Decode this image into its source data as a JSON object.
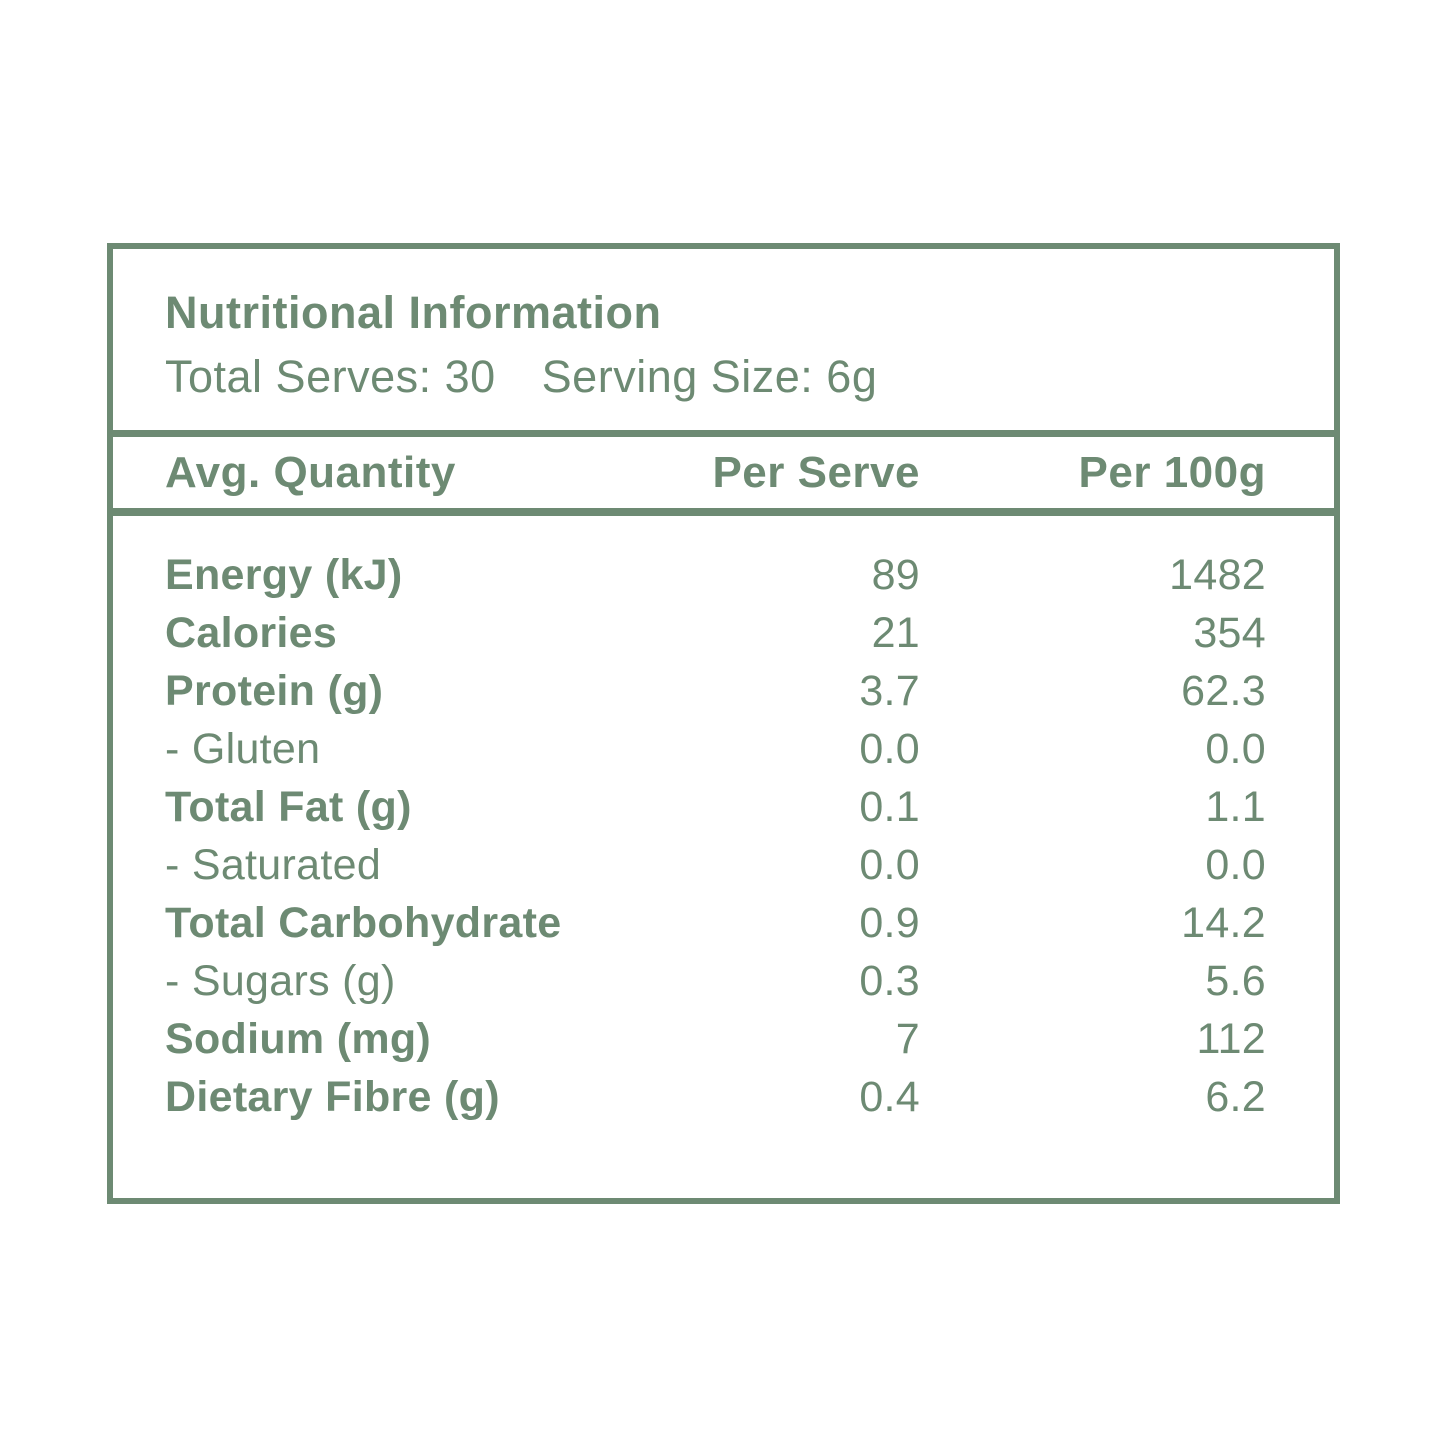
{
  "colors": {
    "green": "#6d8a73",
    "background": "#ffffff"
  },
  "label": {
    "title": "Nutritional Information",
    "serves_text": "Total Serves: 30",
    "serving_text": "Serving Size: 6g",
    "columns": {
      "quantity": "Avg. Quantity",
      "per_serve": "Per Serve",
      "per_100g": "Per 100g"
    },
    "rows": [
      {
        "name": "Energy (kJ)",
        "per_serve": "89",
        "per_100g": "1482",
        "emphasis": true
      },
      {
        "name": "Calories",
        "per_serve": "21",
        "per_100g": "354",
        "emphasis": true
      },
      {
        "name": "Protein (g)",
        "per_serve": "3.7",
        "per_100g": "62.3",
        "emphasis": true
      },
      {
        "name": "- Gluten",
        "per_serve": "0.0",
        "per_100g": "0.0",
        "emphasis": false
      },
      {
        "name": "Total Fat (g)",
        "per_serve": "0.1",
        "per_100g": "1.1",
        "emphasis": true
      },
      {
        "name": "- Saturated",
        "per_serve": "0.0",
        "per_100g": "0.0",
        "emphasis": false
      },
      {
        "name": "Total Carbohydrate",
        "per_serve": "0.9",
        "per_100g": "14.2",
        "emphasis": true
      },
      {
        "name": "- Sugars (g)",
        "per_serve": "0.3",
        "per_100g": "5.6",
        "emphasis": false
      },
      {
        "name": "Sodium (mg)",
        "per_serve": "7",
        "per_100g": "112",
        "emphasis": true
      },
      {
        "name": "Dietary Fibre (g)",
        "per_serve": "0.4",
        "per_100g": "6.2",
        "emphasis": true
      }
    ]
  }
}
